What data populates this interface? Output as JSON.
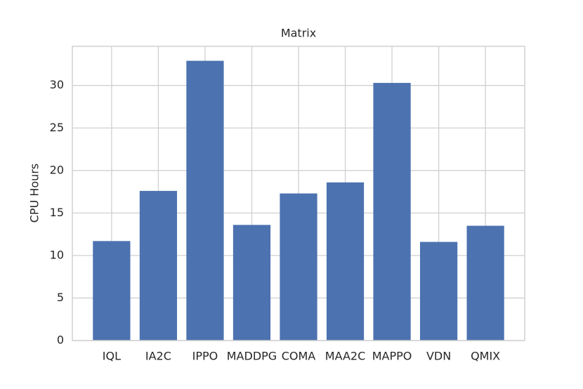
{
  "chart_data": {
    "type": "bar",
    "title": "Matrix",
    "y_label": "CPU Hours",
    "categories": [
      "IQL",
      "IA2C",
      "IPPO",
      "MADDPG",
      "COMA",
      "MAA2C",
      "MAPPO",
      "VDN",
      "QMIX"
    ],
    "values": [
      11.7,
      17.6,
      32.9,
      13.6,
      17.3,
      18.6,
      30.3,
      11.6,
      13.5
    ],
    "color": "#4c72b0",
    "ylim": [
      0,
      34.6
    ],
    "yticks": [
      0,
      5,
      10,
      15,
      20,
      25,
      30
    ],
    "grid": true
  }
}
